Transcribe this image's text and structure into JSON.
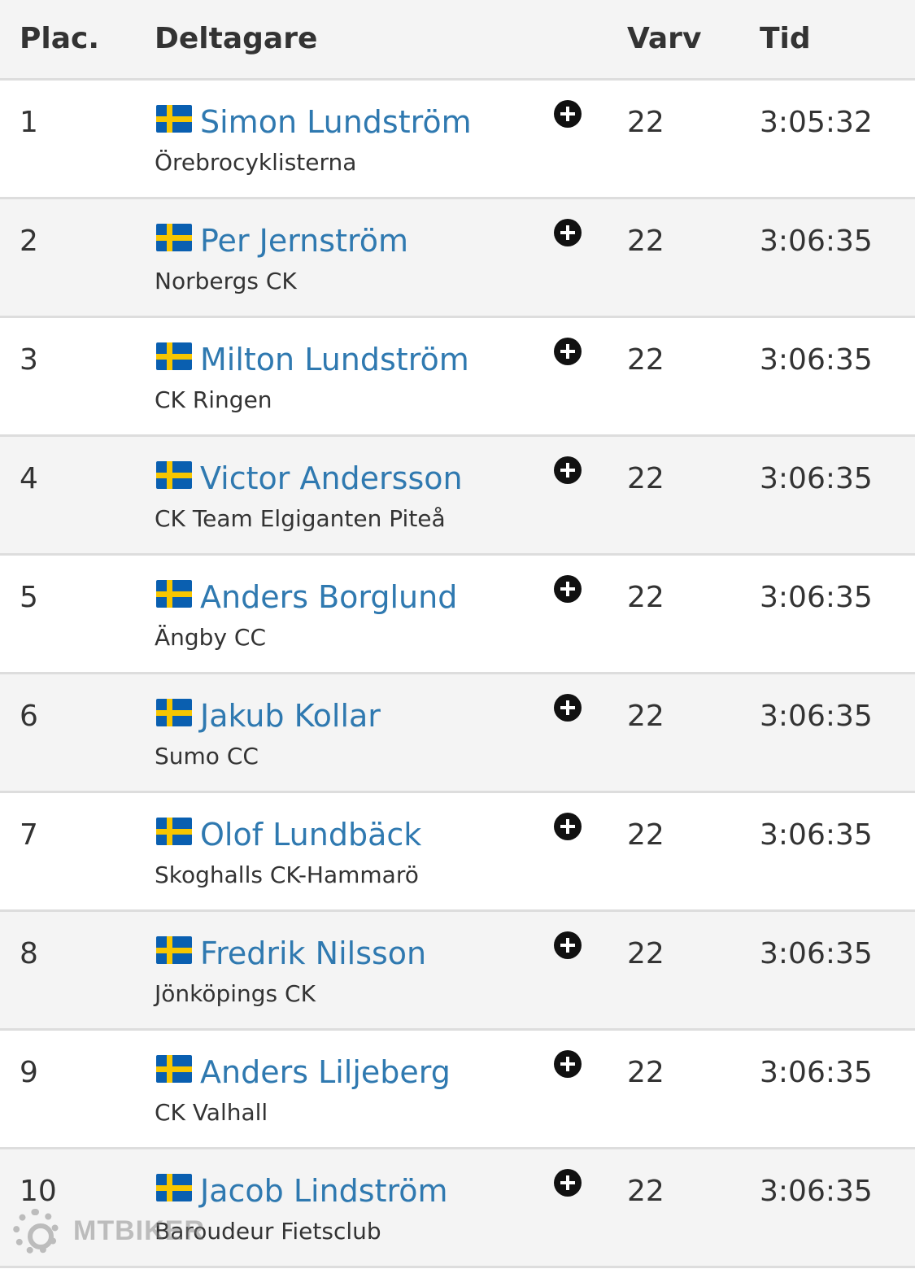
{
  "header": {
    "place": "Plac.",
    "participant": "Deltagare",
    "laps": "Varv",
    "time": "Tid"
  },
  "rows": [
    {
      "place": "1",
      "name": "Simon Lundström",
      "club": "Örebrocyklisterna",
      "laps": "22",
      "time": "3:05:32"
    },
    {
      "place": "2",
      "name": "Per Jernström",
      "club": "Norbergs CK",
      "laps": "22",
      "time": "3:06:35"
    },
    {
      "place": "3",
      "name": "Milton Lundström",
      "club": "CK Ringen",
      "laps": "22",
      "time": "3:06:35"
    },
    {
      "place": "4",
      "name": "Victor Andersson",
      "club": "CK Team Elgiganten Piteå",
      "laps": "22",
      "time": "3:06:35"
    },
    {
      "place": "5",
      "name": "Anders Borglund",
      "club": "Ängby CC",
      "laps": "22",
      "time": "3:06:35"
    },
    {
      "place": "6",
      "name": "Jakub Kollar",
      "club": "Sumo CC",
      "laps": "22",
      "time": "3:06:35"
    },
    {
      "place": "7",
      "name": "Olof Lundbäck",
      "club": "Skoghalls CK-Hammarö",
      "laps": "22",
      "time": "3:06:35"
    },
    {
      "place": "8",
      "name": "Fredrik Nilsson",
      "club": "Jönköpings CK",
      "laps": "22",
      "time": "3:06:35"
    },
    {
      "place": "9",
      "name": "Anders Liljeberg",
      "club": "CK Valhall",
      "laps": "22",
      "time": "3:06:35"
    },
    {
      "place": "10",
      "name": "Jacob Lindström",
      "club": "Baroudeur Fietsclub",
      "laps": "22",
      "time": "3:06:35"
    }
  ],
  "icons": {
    "flag": "sweden-flag-icon",
    "expand": "plus-circle-icon"
  },
  "watermark": {
    "text": "MTBIKER"
  },
  "colors": {
    "name_link": "#2f79b0",
    "header_bg": "#f4f4f4",
    "row_alt_bg": "#f4f4f4",
    "divider": "#dddddd"
  }
}
